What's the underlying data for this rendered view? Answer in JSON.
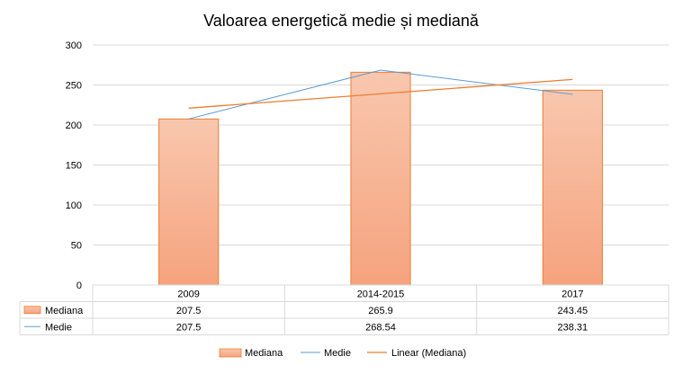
{
  "chart_data": {
    "type": "bar",
    "title": "Valoarea energetică medie și mediană",
    "categories": [
      "2009",
      "2014-2015",
      "2017"
    ],
    "ylim": [
      0,
      300
    ],
    "yticks": [
      0,
      50,
      100,
      150,
      200,
      250,
      300
    ],
    "grid": true,
    "legend_position": "bottom",
    "series": [
      {
        "name": "Mediana",
        "kind": "bar",
        "values": [
          207.5,
          265.9,
          243.45
        ],
        "value_labels": [
          "207.5",
          "265.9",
          "243.45"
        ],
        "color": "#f4a582"
      },
      {
        "name": "Medie",
        "kind": "line",
        "values": [
          207.5,
          268.54,
          238.31
        ],
        "value_labels": [
          "207.5",
          "268.54",
          "238.31"
        ],
        "color": "#5b9bd5"
      }
    ],
    "trendline": {
      "name": "Linear (Mediana)",
      "of": "Mediana",
      "type": "linear",
      "color": "#ed7d31"
    }
  },
  "colors": {
    "bar_fill_top": "#f8c7ae",
    "bar_fill_bottom": "#f6a37e",
    "bar_stroke": "#ed7d31",
    "grid": "#d9d9d9",
    "text": "#000000"
  }
}
